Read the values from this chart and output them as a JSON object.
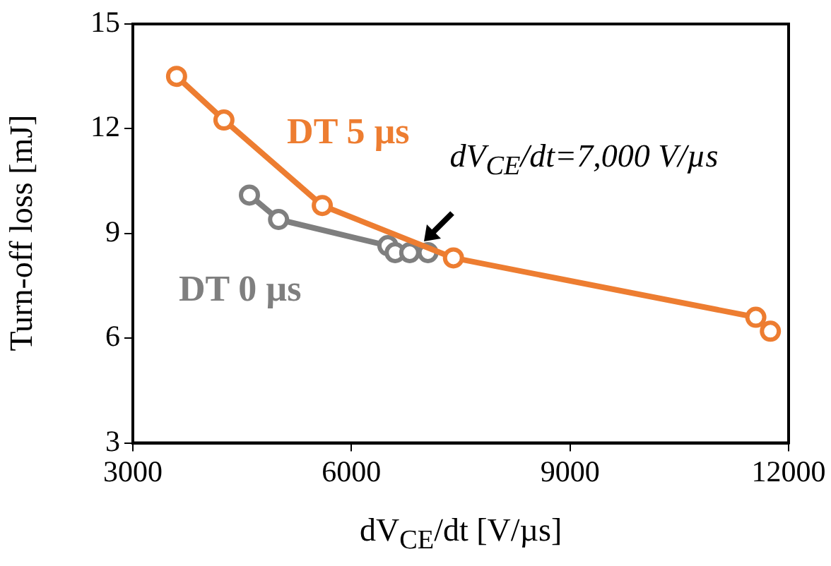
{
  "chart_data": {
    "type": "line",
    "xlabel": "dV$_{CE}$/dt [V/µs]",
    "ylabel": "Turn-off loss [mJ]",
    "xlim": [
      3000,
      12000
    ],
    "xticks": [
      3000,
      6000,
      9000,
      12000
    ],
    "ylim": [
      3,
      15
    ],
    "yticks": [
      3,
      6,
      9,
      12,
      15
    ],
    "grid": false,
    "legend": false,
    "marker": "circle",
    "line_style": "solid",
    "series": [
      {
        "name": "DT 5 µs",
        "color": "#ed7d31",
        "x": [
          3600,
          4250,
          5600,
          7400,
          11550,
          11750
        ],
        "values": [
          13.5,
          12.25,
          9.8,
          8.3,
          6.6,
          6.2
        ]
      },
      {
        "name": "DT 0 µs",
        "color": "#7f7f7f",
        "x": [
          4600,
          5000,
          6500,
          6600,
          6800,
          7050
        ],
        "values": [
          10.1,
          9.4,
          8.65,
          8.45,
          8.45,
          8.45
        ]
      }
    ],
    "annotations": [
      {
        "text": "dV$_{CE}$/dt=7,000 V/µs",
        "x": 7000,
        "y": 8.7
      }
    ]
  }
}
